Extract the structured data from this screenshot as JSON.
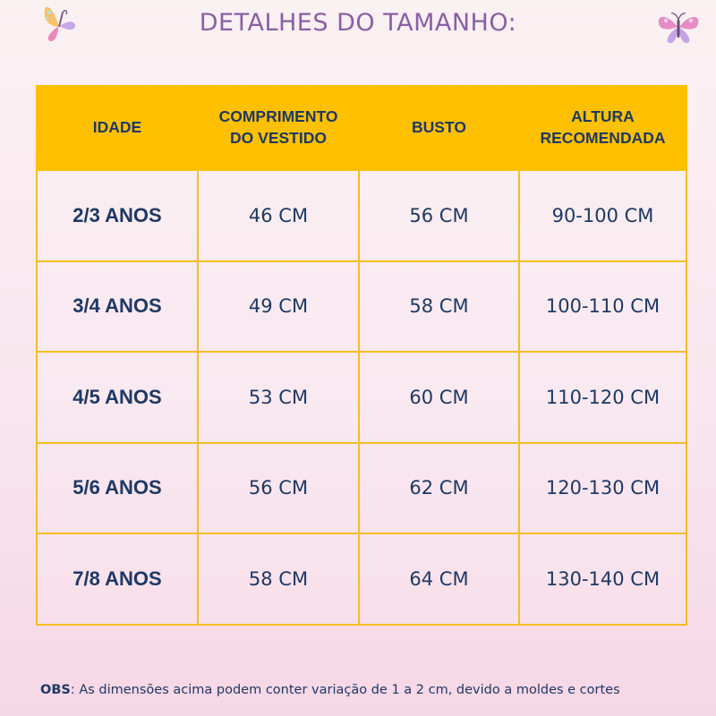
{
  "title": "DETALHES DO TAMANHO:",
  "icons": {
    "left": "butterfly-icon",
    "right": "butterfly-icon"
  },
  "colors": {
    "header_bg": "#ffc000",
    "text": "#1f3864",
    "title": "#8a5fa3",
    "border": "#f4be22"
  },
  "table": {
    "headers": {
      "idade": "IDADE",
      "comprimento": [
        "COMPRIMENTO",
        "DO VESTIDO"
      ],
      "busto": "BUSTO",
      "altura": [
        "ALTURA",
        "RECOMENDADA"
      ]
    },
    "rows": [
      {
        "idade": "2/3 ANOS",
        "comprimento": "46 CM",
        "busto": "56 CM",
        "altura": "90-100 CM"
      },
      {
        "idade": "3/4 ANOS",
        "comprimento": "49 CM",
        "busto": "58 CM",
        "altura": "100-110 CM"
      },
      {
        "idade": "4/5 ANOS",
        "comprimento": "53 CM",
        "busto": "60 CM",
        "altura": "110-120 CM"
      },
      {
        "idade": "5/6 ANOS",
        "comprimento": "56 CM",
        "busto": "62 CM",
        "altura": "120-130 CM"
      },
      {
        "idade": "7/8 ANOS",
        "comprimento": "58 CM",
        "busto": "64 CM",
        "altura": "130-140 CM"
      }
    ]
  },
  "obs": {
    "label": "OBS",
    "text": ": As dimensões acima podem conter variação de 1 a 2 cm, devido a moldes e cortes"
  }
}
